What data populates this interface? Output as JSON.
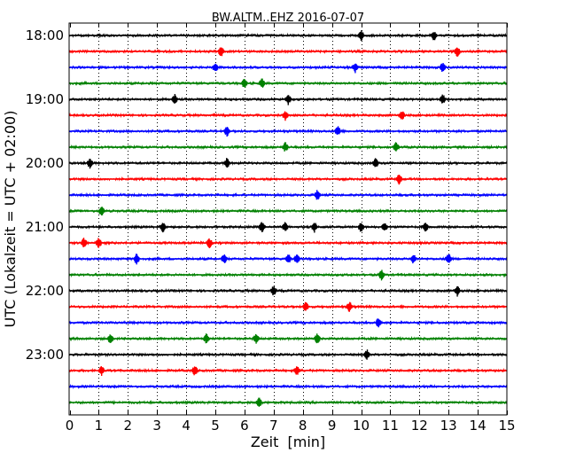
{
  "chart_data": {
    "type": "line",
    "title": "BW.ALTM..EHZ 2016-07-07",
    "xlabel": "Zeit  [min]",
    "ylabel": "UTC (Lokalzeit = UTC + 02:00)",
    "xlim": [
      0,
      15
    ],
    "x_ticks": [
      "0",
      "1",
      "2",
      "3",
      "4",
      "5",
      "6",
      "7",
      "8",
      "9",
      "10",
      "11",
      "12",
      "13",
      "14",
      "15"
    ],
    "y_ticks": [
      "18:00",
      "19:00",
      "20:00",
      "21:00",
      "22:00",
      "23:00"
    ],
    "line_interval_min": 15,
    "colors": [
      "#000000",
      "#ff0000",
      "#0000ff",
      "#008000"
    ],
    "grid": "vertical dotted at each minute",
    "series": [
      {
        "start": "18:00",
        "events": [
          10,
          12.5
        ]
      },
      {
        "start": "18:15",
        "events": [
          5.2,
          13.3
        ]
      },
      {
        "start": "18:30",
        "events": [
          5.0,
          9.8,
          12.8
        ]
      },
      {
        "start": "18:45",
        "events": [
          6.0,
          6.6
        ]
      },
      {
        "start": "19:00",
        "events": [
          3.6,
          7.5,
          12.8
        ]
      },
      {
        "start": "19:15",
        "events": [
          7.4,
          11.4
        ]
      },
      {
        "start": "19:30",
        "events": [
          5.4,
          9.2
        ]
      },
      {
        "start": "19:45",
        "events": [
          7.4,
          11.2
        ]
      },
      {
        "start": "20:00",
        "events": [
          0.7,
          5.4,
          10.5
        ]
      },
      {
        "start": "20:15",
        "events": [
          11.3
        ]
      },
      {
        "start": "20:30",
        "events": [
          8.5
        ]
      },
      {
        "start": "20:45",
        "events": [
          1.1
        ]
      },
      {
        "start": "21:00",
        "events": [
          3.2,
          6.6,
          7.4,
          8.4,
          10.0,
          10.8,
          12.2
        ]
      },
      {
        "start": "21:15",
        "events": [
          0.5,
          1.0,
          4.8
        ]
      },
      {
        "start": "21:30",
        "events": [
          2.3,
          5.3,
          7.5,
          7.8,
          11.8,
          13.0
        ]
      },
      {
        "start": "21:45",
        "events": [
          10.7
        ]
      },
      {
        "start": "22:00",
        "events": [
          7.0,
          13.3
        ]
      },
      {
        "start": "22:15",
        "events": [
          8.1,
          9.6
        ]
      },
      {
        "start": "22:30",
        "events": [
          10.6
        ]
      },
      {
        "start": "22:45",
        "events": [
          1.4,
          4.7,
          6.4,
          8.5
        ]
      },
      {
        "start": "23:00",
        "events": [
          10.2
        ]
      },
      {
        "start": "23:15",
        "events": [
          1.1,
          4.3,
          7.8
        ]
      },
      {
        "start": "23:30",
        "events": []
      },
      {
        "start": "23:45",
        "events": [
          6.5
        ]
      }
    ]
  }
}
